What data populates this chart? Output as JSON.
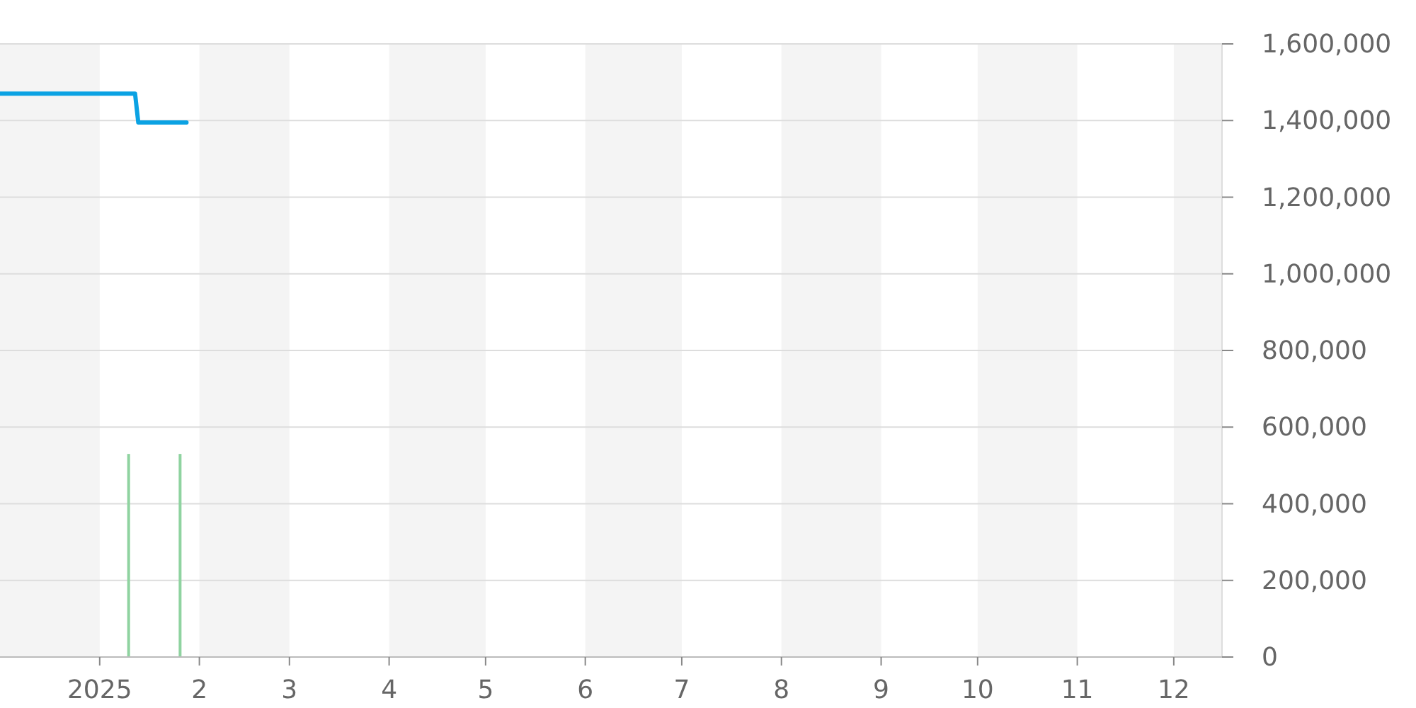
{
  "chart_data": {
    "type": "line",
    "xlim": [
      "2024-12-01",
      "2025-12-16"
    ],
    "xticks": [
      {
        "value": "2025-01-01",
        "label": "2025"
      },
      {
        "value": "2025-02-01",
        "label": "2"
      },
      {
        "value": "2025-03-01",
        "label": "3"
      },
      {
        "value": "2025-04-01",
        "label": "4"
      },
      {
        "value": "2025-05-01",
        "label": "5"
      },
      {
        "value": "2025-06-01",
        "label": "6"
      },
      {
        "value": "2025-07-01",
        "label": "7"
      },
      {
        "value": "2025-08-01",
        "label": "8"
      },
      {
        "value": "2025-09-01",
        "label": "9"
      },
      {
        "value": "2025-10-01",
        "label": "10"
      },
      {
        "value": "2025-11-01",
        "label": "11"
      },
      {
        "value": "2025-12-01",
        "label": "12"
      }
    ],
    "ylim": [
      0,
      1600000
    ],
    "yticks": [
      {
        "value": 0,
        "label": "0"
      },
      {
        "value": 200000,
        "label": "200,000"
      },
      {
        "value": 400000,
        "label": "400,000"
      },
      {
        "value": 600000,
        "label": "600,000"
      },
      {
        "value": 800000,
        "label": "800,000"
      },
      {
        "value": 1000000,
        "label": "1,000,000"
      },
      {
        "value": 1200000,
        "label": "1,200,000"
      },
      {
        "value": 1400000,
        "label": "1,400,000"
      },
      {
        "value": 1600000,
        "label": "1,600,000"
      }
    ],
    "grid": "y",
    "bands": [
      {
        "axis": "x",
        "from": "2024-12-01",
        "to": "2025-01-01",
        "color": "#f4f4f4"
      },
      {
        "axis": "x",
        "from": "2025-02-01",
        "to": "2025-03-01",
        "color": "#f4f4f4"
      },
      {
        "axis": "x",
        "from": "2025-04-01",
        "to": "2025-05-01",
        "color": "#f4f4f4"
      },
      {
        "axis": "x",
        "from": "2025-06-01",
        "to": "2025-07-01",
        "color": "#f4f4f4"
      },
      {
        "axis": "x",
        "from": "2025-08-01",
        "to": "2025-09-01",
        "color": "#f4f4f4"
      },
      {
        "axis": "x",
        "from": "2025-10-01",
        "to": "2025-11-01",
        "color": "#f4f4f4"
      },
      {
        "axis": "x",
        "from": "2025-12-01",
        "to": "2025-12-16",
        "color": "#f4f4f4"
      }
    ],
    "series": [
      {
        "color": "#0ba2e3",
        "x": [
          "2024-12-01",
          "2025-01-12",
          "2025-01-13",
          "2025-01-28"
        ],
        "values": [
          1470000,
          1470000,
          1395000,
          1395000
        ]
      },
      {
        "type": "bar",
        "color": "#8fd3a0",
        "x": [
          "2025-01-10",
          "2025-01-26"
        ],
        "values": [
          530000,
          530000
        ]
      }
    ]
  }
}
